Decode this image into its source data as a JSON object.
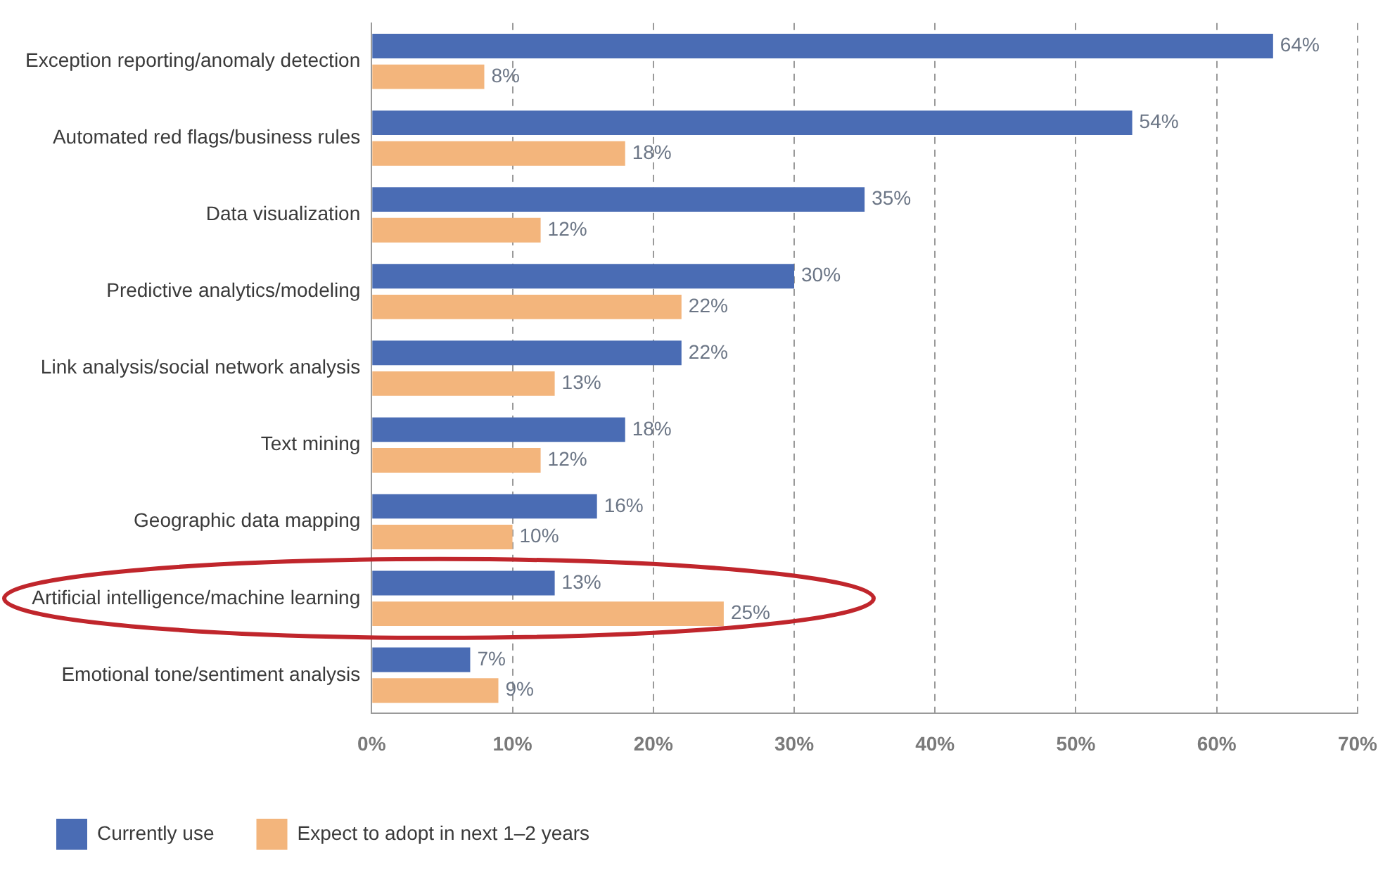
{
  "chart_data": {
    "type": "bar",
    "orientation": "horizontal",
    "categories": [
      "Exception reporting/anomaly detection",
      "Automated red flags/business rules",
      "Data visualization",
      "Predictive analytics/modeling",
      "Link analysis/social network analysis",
      "Text mining",
      "Geographic data mapping",
      "Artificial intelligence/machine learning",
      "Emotional tone/sentiment analysis"
    ],
    "series": [
      {
        "name": "Currently use",
        "color": "#4a6cb4",
        "values": [
          64,
          54,
          35,
          30,
          22,
          18,
          16,
          13,
          7
        ],
        "value_labels": [
          "64%",
          "54%",
          "35%",
          "30%",
          "22%",
          "18%",
          "16%",
          "13%",
          "7%"
        ]
      },
      {
        "name": "Expect to adopt in next 1–2 years",
        "color": "#f3b57c",
        "values": [
          8,
          18,
          12,
          22,
          13,
          12,
          10,
          25,
          9
        ],
        "value_labels": [
          "8%",
          "18%",
          "12%",
          "22%",
          "13%",
          "12%",
          "10%",
          "25%",
          "9%"
        ]
      }
    ],
    "xlim": [
      0,
      70
    ],
    "xticks": [
      {
        "value": 0,
        "label": "0%"
      },
      {
        "value": 10,
        "label": "10%"
      },
      {
        "value": 20,
        "label": "20%"
      },
      {
        "value": 30,
        "label": "30%"
      },
      {
        "value": 40,
        "label": "40%"
      },
      {
        "value": 50,
        "label": "50%"
      },
      {
        "value": 60,
        "label": "60%"
      },
      {
        "value": 70,
        "label": "70%"
      }
    ],
    "grid": "x",
    "legend": "bottom"
  }
}
